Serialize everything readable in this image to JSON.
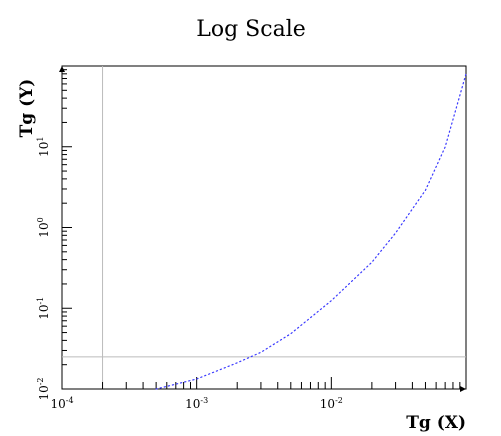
{
  "chart_data": {
    "type": "line",
    "title": "Log Scale",
    "xlabel": "Tg (X)",
    "ylabel": "Tg (Y)",
    "xscale": "log",
    "yscale": "log",
    "xlim": [
      0.0001,
      0.1
    ],
    "ylim": [
      0.01,
      100
    ],
    "x_tick_labels": [
      {
        "base": "10",
        "exp": "-4",
        "value": 0.0001
      },
      {
        "base": "10",
        "exp": "-3",
        "value": 0.001
      },
      {
        "base": "10",
        "exp": "-2",
        "value": 0.01
      }
    ],
    "y_tick_labels": [
      {
        "base": "10",
        "exp": "-2",
        "value": 0.01
      },
      {
        "base": "10",
        "exp": "-1",
        "value": 0.1
      },
      {
        "base": "10",
        "exp": "0",
        "value": 1
      },
      {
        "base": "10",
        "exp": "1",
        "value": 10
      }
    ],
    "reference_lines": {
      "x": 0.0002,
      "y": 0.025
    },
    "series": [
      {
        "line_style": "dotted",
        "color": "#3a3aff",
        "points": [
          {
            "x": 0.0005,
            "y": 0.01
          },
          {
            "x": 0.001,
            "y": 0.0133
          },
          {
            "x": 0.002,
            "y": 0.0211
          },
          {
            "x": 0.003,
            "y": 0.0285
          },
          {
            "x": 0.005,
            "y": 0.0484
          },
          {
            "x": 0.01,
            "y": 0.124
          },
          {
            "x": 0.02,
            "y": 0.372
          },
          {
            "x": 0.03,
            "y": 0.855
          },
          {
            "x": 0.05,
            "y": 2.9
          },
          {
            "x": 0.07,
            "y": 9.9
          },
          {
            "x": 0.1,
            "y": 80
          }
        ]
      }
    ],
    "grid": false
  },
  "colors": {
    "axis": "#000000",
    "refline": "#bbbbbb",
    "series": "#3a3aff"
  }
}
